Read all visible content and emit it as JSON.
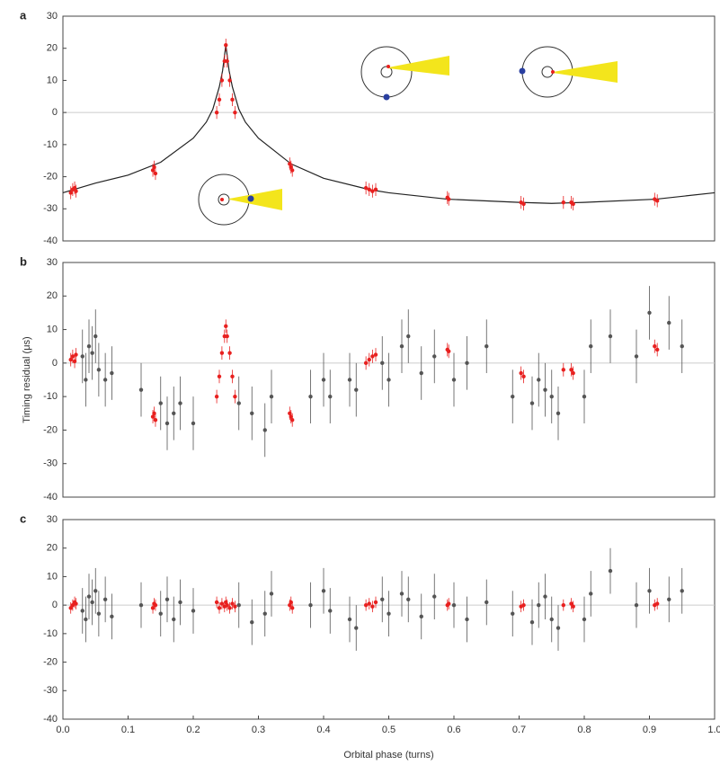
{
  "chart_data": [
    {
      "type": "scatter",
      "title": "a",
      "xlim": [
        0,
        1
      ],
      "ylim": [
        -40,
        30
      ],
      "yticks": [
        30,
        20,
        10,
        0,
        -10,
        -20,
        -30,
        -40
      ],
      "series": [
        {
          "style": "line",
          "color": "#222222",
          "x": [
            0,
            0.05,
            0.1,
            0.15,
            0.2,
            0.22,
            0.23,
            0.24,
            0.245,
            0.25,
            0.255,
            0.26,
            0.27,
            0.28,
            0.3,
            0.35,
            0.4,
            0.47,
            0.5,
            0.59,
            0.7,
            0.75,
            0.8,
            0.91,
            1
          ],
          "values": [
            -25,
            -22,
            -19.5,
            -15.5,
            -8,
            -3,
            1,
            8,
            13,
            21,
            13,
            8,
            1,
            -3,
            -8,
            -16,
            -20.5,
            -24,
            -25,
            -27,
            -28,
            -28.3,
            -28,
            -27,
            -25
          ]
        },
        {
          "style": "points",
          "color": "#e8201f",
          "error": 2,
          "x": [
            0.012,
            0.015,
            0.018,
            0.02,
            0.138,
            0.14,
            0.142,
            0.236,
            0.24,
            0.244,
            0.248,
            0.25,
            0.252,
            0.256,
            0.26,
            0.264,
            0.348,
            0.35,
            0.352,
            0.465,
            0.47,
            0.475,
            0.48,
            0.59,
            0.592,
            0.703,
            0.707,
            0.768,
            0.78,
            0.783,
            0.908,
            0.912
          ],
          "values": [
            -25,
            -24,
            -23.5,
            -24.5,
            -18,
            -17,
            -19,
            0,
            4,
            10,
            16,
            21,
            16,
            10,
            4,
            0,
            -16,
            -17,
            -18,
            -23.5,
            -24,
            -24.5,
            -24,
            -26.5,
            -27,
            -28,
            -28.5,
            -28,
            -28,
            -28.5,
            -27,
            -27.5
          ]
        }
      ]
    },
    {
      "type": "scatter",
      "title": "b",
      "y_label": "Timing residual (μs)",
      "xlim": [
        0,
        1
      ],
      "ylim": [
        -40,
        30
      ],
      "yticks": [
        30,
        20,
        10,
        0,
        -10,
        -20,
        -30,
        -40
      ],
      "series": [
        {
          "style": "points",
          "color": "#555555",
          "error": 8,
          "x": [
            0.03,
            0.035,
            0.04,
            0.045,
            0.05,
            0.055,
            0.065,
            0.075,
            0.12,
            0.15,
            0.16,
            0.17,
            0.18,
            0.2,
            0.27,
            0.29,
            0.31,
            0.32,
            0.38,
            0.4,
            0.41,
            0.44,
            0.45,
            0.49,
            0.5,
            0.52,
            0.53,
            0.55,
            0.57,
            0.6,
            0.62,
            0.65,
            0.69,
            0.72,
            0.73,
            0.74,
            0.75,
            0.76,
            0.8,
            0.81,
            0.84,
            0.88,
            0.9,
            0.93,
            0.95
          ],
          "values": [
            2,
            -5,
            5,
            3,
            8,
            -2,
            -5,
            -3,
            -8,
            -12,
            -18,
            -15,
            -12,
            -18,
            -12,
            -15,
            -20,
            -10,
            -10,
            -5,
            -10,
            -5,
            -8,
            0,
            -5,
            5,
            8,
            -3,
            2,
            -5,
            0,
            5,
            -10,
            -12,
            -5,
            -8,
            -10,
            -15,
            -10,
            5,
            8,
            2,
            15,
            12,
            5
          ]
        },
        {
          "style": "points",
          "color": "#e8201f",
          "error": 2,
          "x": [
            0.012,
            0.015,
            0.018,
            0.02,
            0.138,
            0.14,
            0.142,
            0.236,
            0.24,
            0.244,
            0.248,
            0.25,
            0.252,
            0.256,
            0.26,
            0.264,
            0.348,
            0.35,
            0.352,
            0.465,
            0.47,
            0.475,
            0.48,
            0.59,
            0.592,
            0.703,
            0.707,
            0.768,
            0.78,
            0.783,
            0.908,
            0.912
          ],
          "values": [
            1,
            2,
            0.5,
            2.5,
            -16,
            -15,
            -17,
            -10,
            -4,
            3,
            8,
            11,
            8,
            3,
            -4,
            -10,
            -15,
            -16,
            -17,
            0,
            1,
            2,
            2.5,
            4,
            3.5,
            -3,
            -4,
            -2,
            -2,
            -3,
            5,
            4
          ]
        }
      ]
    },
    {
      "type": "scatter",
      "title": "c",
      "x_label": "Orbital phase (turns)",
      "xlim": [
        0,
        1
      ],
      "ylim": [
        -40,
        30
      ],
      "yticks": [
        30,
        20,
        10,
        0,
        -10,
        -20,
        -30,
        -40
      ],
      "xticks": [
        {
          "value": 0,
          "label": "0.0"
        },
        0.1,
        0.2,
        0.3,
        0.4,
        0.5,
        0.6,
        0.7,
        0.8,
        0.9,
        {
          "value": 1,
          "label": "1.0"
        }
      ],
      "series": [
        {
          "style": "points",
          "color": "#555555",
          "error": 8,
          "x": [
            0.03,
            0.035,
            0.04,
            0.045,
            0.05,
            0.055,
            0.065,
            0.075,
            0.12,
            0.15,
            0.16,
            0.17,
            0.18,
            0.2,
            0.27,
            0.29,
            0.31,
            0.32,
            0.38,
            0.4,
            0.41,
            0.44,
            0.45,
            0.49,
            0.5,
            0.52,
            0.53,
            0.55,
            0.57,
            0.6,
            0.62,
            0.65,
            0.69,
            0.72,
            0.73,
            0.74,
            0.75,
            0.76,
            0.8,
            0.81,
            0.84,
            0.88,
            0.9,
            0.93,
            0.95
          ],
          "values": [
            -2,
            -5,
            3,
            1,
            5,
            -3,
            2,
            -4,
            0,
            -3,
            2,
            -5,
            1,
            -2,
            0,
            -6,
            -3,
            4,
            0,
            5,
            -2,
            -5,
            -8,
            2,
            -3,
            4,
            2,
            -4,
            3,
            0,
            -5,
            1,
            -3,
            -6,
            0,
            3,
            -5,
            -8,
            -5,
            4,
            12,
            0,
            5,
            2,
            5
          ]
        },
        {
          "style": "points",
          "color": "#e8201f",
          "error": 2,
          "x": [
            0.012,
            0.015,
            0.018,
            0.02,
            0.138,
            0.14,
            0.142,
            0.236,
            0.24,
            0.244,
            0.248,
            0.25,
            0.252,
            0.256,
            0.26,
            0.264,
            0.348,
            0.35,
            0.352,
            0.465,
            0.47,
            0.475,
            0.48,
            0.59,
            0.592,
            0.703,
            0.707,
            0.768,
            0.78,
            0.783,
            0.908,
            0.912
          ],
          "values": [
            -1,
            0,
            1,
            0.5,
            -1,
            0.5,
            0,
            1,
            -1,
            0.5,
            -0.5,
            1,
            0,
            -1,
            0.5,
            -0.5,
            0,
            1,
            -1,
            0,
            0.5,
            -0.5,
            1,
            0,
            0.5,
            -0.5,
            0,
            0,
            0.5,
            -0.5,
            0,
            0.5
          ]
        }
      ]
    }
  ]
}
